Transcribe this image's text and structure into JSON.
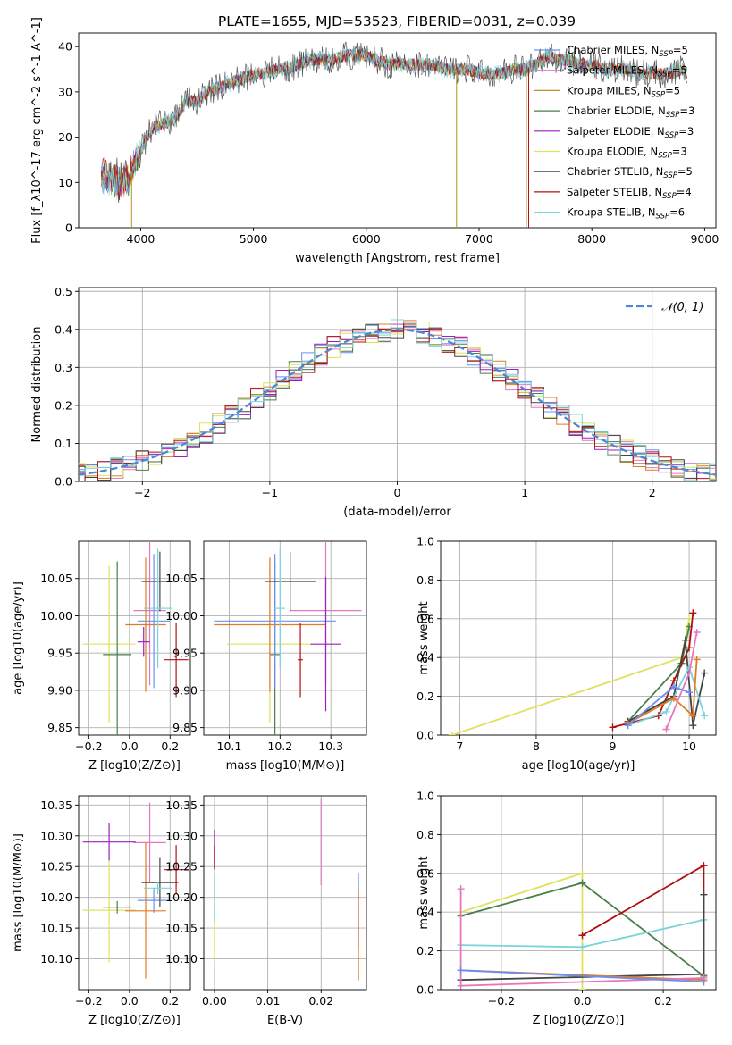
{
  "figure": {
    "title": "PLATE=1655, MJD=53523, FIBERID=0031, z=0.039"
  },
  "colors": {
    "chabrier_miles": "#6b8ff0",
    "salpeter_miles": "#e377c2",
    "kroupa_miles": "#bc8f1f",
    "chabrier_elodie": "#4a7f4a",
    "salpeter_elodie": "#9b1fc4",
    "kroupa_elodie": "#dde35a",
    "chabrier_stelib": "#444444",
    "salpeter_stelib": "#b01010",
    "kroupa_stelib": "#79d5db",
    "orange": "#e07b24",
    "normal_curve": "#4f86d4",
    "grid": "#b0b0b0"
  },
  "chart_data": [
    {
      "id": "spectrum",
      "type": "line",
      "xlabel": "wavelength [Angstrom, rest frame]",
      "ylabel": "Flux [f_λ10^-17 erg cm^-2 s^-1 A^-1]",
      "xlim": [
        3450,
        9100
      ],
      "ylim": [
        0,
        43
      ],
      "xticks": [
        4000,
        5000,
        6000,
        7000,
        8000,
        9000
      ],
      "yticks": [
        0,
        10,
        20,
        30,
        40
      ],
      "grid": false,
      "legend_position": "right",
      "continuum": {
        "x": [
          3650,
          3700,
          3800,
          3900,
          4000,
          4100,
          4200,
          4300,
          4400,
          4500,
          4600,
          4700,
          4800,
          4900,
          5000,
          5100,
          5200,
          5300,
          5400,
          5500,
          5600,
          5700,
          5800,
          5900,
          6000,
          6100,
          6200,
          6300,
          6400,
          6500,
          6600,
          6700,
          6800,
          6900,
          7000,
          7100,
          7200,
          7300,
          7400,
          7500,
          7600,
          7700,
          7800,
          7900,
          8000,
          8100,
          8200,
          8300,
          8400,
          8500,
          8600,
          8700,
          8800,
          8850
        ],
        "y": [
          12,
          11,
          10,
          11,
          17,
          22,
          23,
          24,
          28,
          28,
          30,
          31,
          32,
          33,
          34,
          34,
          35,
          35,
          36,
          37,
          37,
          37,
          38,
          38,
          38,
          37,
          36,
          36,
          36,
          36,
          36,
          35,
          35,
          35,
          34,
          34,
          34,
          35,
          35,
          36,
          38,
          37,
          37,
          36,
          36,
          35,
          35,
          35,
          34,
          34,
          34,
          34,
          35,
          34
        ]
      },
      "series": [
        {
          "name": "Chabrier MILES, N_SSP=5",
          "color_key": "chabrier_miles"
        },
        {
          "name": "Salpeter MILES, N_SSP=5",
          "color_key": "salpeter_miles"
        },
        {
          "name": "Kroupa MILES, N_SSP=5",
          "color_key": "kroupa_miles"
        },
        {
          "name": "Chabrier ELODIE, N_SSP=3",
          "color_key": "chabrier_elodie"
        },
        {
          "name": "Salpeter ELODIE, N_SSP=3",
          "color_key": "salpeter_elodie"
        },
        {
          "name": "Kroupa ELODIE, N_SSP=3",
          "color_key": "kroupa_elodie"
        },
        {
          "name": "Chabrier STELIB, N_SSP=5",
          "color_key": "chabrier_stelib"
        },
        {
          "name": "Salpeter STELIB, N_SSP=4",
          "color_key": "salpeter_stelib"
        },
        {
          "name": "Kroupa STELIB, N_SSP=6",
          "color_key": "kroupa_stelib"
        }
      ],
      "drop_lines": [
        {
          "x": 3920,
          "color_key": "kroupa_miles"
        },
        {
          "x": 6800,
          "color_key": "kroupa_miles"
        },
        {
          "x": 7420,
          "color_key": "orange"
        },
        {
          "x": 7440,
          "color_key": "salpeter_stelib"
        }
      ]
    },
    {
      "id": "residuals",
      "type": "line",
      "xlabel": "(data-model)/error",
      "ylabel": "Normed distribution",
      "xlim": [
        -2.5,
        2.5
      ],
      "ylim": [
        0,
        0.51
      ],
      "xticks": [
        -2,
        -1,
        0,
        1,
        2
      ],
      "xtick_labels": [
        "−2",
        "−1",
        "0",
        "1",
        "2"
      ],
      "yticks": [
        0.0,
        0.1,
        0.2,
        0.3,
        0.4,
        0.5
      ],
      "ytick_labels": [
        "0.0",
        "0.1",
        "0.2",
        "0.3",
        "0.4",
        "0.5"
      ],
      "grid": true,
      "legend_position": "top-right",
      "normal_label": "𝒩(0, 1)",
      "hist_bin_width": 0.1
    },
    {
      "id": "age_vs_Z",
      "type": "scatter",
      "xlabel": "Z [log10(Z/Z⊙)]",
      "ylabel": "age [log10(age/yr)]",
      "xlim": [
        -0.25,
        0.3
      ],
      "ylim": [
        9.84,
        10.1
      ],
      "xticks": [
        -0.2,
        0.0,
        0.2
      ],
      "xtick_labels": [
        "−0.2",
        "0.0",
        "0.2"
      ],
      "yticks": [
        9.85,
        9.9,
        9.95,
        10.0,
        10.05
      ],
      "ytick_labels": [
        "9.85",
        "9.90",
        "9.95",
        "10.00",
        "10.05"
      ],
      "grid": true,
      "points": [
        {
          "x": -0.1,
          "y": 9.962,
          "xerr": 0.13,
          "yerr": 0.105,
          "color_key": "kroupa_elodie"
        },
        {
          "x": -0.06,
          "y": 9.948,
          "xerr": 0.07,
          "yerr": 0.125,
          "color_key": "chabrier_elodie"
        },
        {
          "x": 0.1,
          "y": 10.007,
          "xerr": 0.08,
          "yerr": 0.1,
          "color_key": "salpeter_miles"
        },
        {
          "x": 0.12,
          "y": 9.993,
          "xerr": 0.08,
          "yerr": 0.09,
          "color_key": "chabrier_miles"
        },
        {
          "x": 0.08,
          "y": 9.988,
          "xerr": 0.1,
          "yerr": 0.09,
          "color_key": "orange"
        },
        {
          "x": 0.15,
          "y": 10.046,
          "xerr": 0.09,
          "yerr": 0.04,
          "color_key": "chabrier_stelib"
        },
        {
          "x": 0.23,
          "y": 9.941,
          "xerr": 0.06,
          "yerr": 0.05,
          "color_key": "salpeter_stelib"
        },
        {
          "x": 0.14,
          "y": 10.01,
          "xerr": 0.07,
          "yerr": 0.08,
          "color_key": "kroupa_stelib"
        },
        {
          "x": 0.07,
          "y": 9.965,
          "xerr": 0.03,
          "yerr": 0.02,
          "color_key": "salpeter_elodie"
        }
      ]
    },
    {
      "id": "age_vs_mass",
      "type": "scatter",
      "xlabel": "mass [log10(M/M⊙)]",
      "ylabel": "",
      "xlim": [
        10.05,
        10.37
      ],
      "ylim": [
        9.84,
        10.1
      ],
      "xticks": [
        10.1,
        10.2,
        10.3
      ],
      "xtick_labels": [
        "10.1",
        "10.2",
        "10.3"
      ],
      "yticks": [
        9.85,
        9.9,
        9.95,
        10.0,
        10.05
      ],
      "ytick_labels": [
        "9.85",
        "9.90",
        "9.95",
        "10.00",
        "10.05"
      ],
      "grid": true,
      "points": [
        {
          "x": 10.18,
          "y": 9.962,
          "xerr": 0.085,
          "yerr": 0.105,
          "color_key": "kroupa_elodie"
        },
        {
          "x": 10.19,
          "y": 9.948,
          "xerr": 0.01,
          "yerr": 0.125,
          "color_key": "chabrier_elodie"
        },
        {
          "x": 10.29,
          "y": 10.007,
          "xerr": 0.07,
          "yerr": 0.1,
          "color_key": "salpeter_miles"
        },
        {
          "x": 10.19,
          "y": 9.993,
          "xerr": 0.12,
          "yerr": 0.09,
          "color_key": "chabrier_miles"
        },
        {
          "x": 10.18,
          "y": 9.988,
          "xerr": 0.11,
          "yerr": 0.09,
          "color_key": "orange"
        },
        {
          "x": 10.22,
          "y": 10.046,
          "xerr": 0.05,
          "yerr": 0.04,
          "color_key": "chabrier_stelib"
        },
        {
          "x": 10.24,
          "y": 9.941,
          "xerr": 0.005,
          "yerr": 0.05,
          "color_key": "salpeter_stelib"
        },
        {
          "x": 10.2,
          "y": 10.01,
          "xerr": 0.01,
          "yerr": 0.08,
          "color_key": "kroupa_stelib"
        },
        {
          "x": 10.29,
          "y": 9.962,
          "xerr": 0.03,
          "yerr": 0.09,
          "color_key": "salpeter_elodie"
        }
      ]
    },
    {
      "id": "weight_vs_age",
      "type": "line",
      "xlabel": "age [log10(age/yr)]",
      "ylabel": "mass weight",
      "xlim": [
        6.75,
        10.35
      ],
      "ylim": [
        0,
        1.0
      ],
      "xticks": [
        7,
        8,
        9,
        10
      ],
      "yticks": [
        0.0,
        0.2,
        0.4,
        0.6,
        0.8,
        1.0
      ],
      "ytick_labels": [
        "0.0",
        "0.2",
        "0.4",
        "0.6",
        "0.8",
        "1.0"
      ],
      "grid": true,
      "series": [
        {
          "color_key": "kroupa_elodie",
          "x": [
            6.9,
            9.9,
            10.0
          ],
          "y": [
            0.0,
            0.4,
            0.6
          ]
        },
        {
          "color_key": "chabrier_elodie",
          "x": [
            9.2,
            9.9,
            10.0
          ],
          "y": [
            0.07,
            0.37,
            0.56
          ]
        },
        {
          "color_key": "salpeter_stelib",
          "x": [
            9.0,
            9.6,
            9.8,
            10.0,
            10.05
          ],
          "y": [
            0.04,
            0.1,
            0.28,
            0.45,
            0.63
          ]
        },
        {
          "color_key": "chabrier_stelib",
          "x": [
            9.2,
            9.8,
            9.95,
            10.05,
            10.2
          ],
          "y": [
            0.07,
            0.2,
            0.49,
            0.05,
            0.32
          ]
        },
        {
          "color_key": "kroupa_stelib",
          "x": [
            9.2,
            9.7,
            10.0,
            10.2
          ],
          "y": [
            0.05,
            0.12,
            0.35,
            0.1
          ]
        },
        {
          "color_key": "orange",
          "x": [
            9.2,
            9.8,
            10.05,
            10.1
          ],
          "y": [
            0.06,
            0.19,
            0.1,
            0.39
          ]
        },
        {
          "color_key": "salpeter_miles",
          "x": [
            9.7,
            10.0,
            10.1
          ],
          "y": [
            0.03,
            0.32,
            0.53
          ]
        },
        {
          "color_key": "chabrier_miles",
          "x": [
            9.2,
            9.8,
            10.0
          ],
          "y": [
            0.05,
            0.25,
            0.22
          ]
        }
      ]
    },
    {
      "id": "mass_vs_Z",
      "type": "scatter",
      "xlabel": "Z [log10(Z/Z⊙)]",
      "ylabel": "mass [log10(M/M⊙)]",
      "xlim": [
        -0.25,
        0.3
      ],
      "ylim": [
        10.05,
        10.365
      ],
      "xticks": [
        -0.2,
        0.0,
        0.2
      ],
      "xtick_labels": [
        "−0.2",
        "0.0",
        "0.2"
      ],
      "yticks": [
        10.1,
        10.15,
        10.2,
        10.25,
        10.3,
        10.35
      ],
      "ytick_labels": [
        "10.10",
        "10.15",
        "10.20",
        "10.25",
        "10.30",
        "10.35"
      ],
      "grid": true,
      "points": [
        {
          "x": -0.1,
          "y": 10.179,
          "xerr": 0.13,
          "yerr": 0.085,
          "color_key": "kroupa_elodie"
        },
        {
          "x": -0.06,
          "y": 10.184,
          "xerr": 0.07,
          "yerr": 0.01,
          "color_key": "chabrier_elodie"
        },
        {
          "x": 0.1,
          "y": 10.289,
          "xerr": 0.08,
          "yerr": 0.065,
          "color_key": "salpeter_miles"
        },
        {
          "x": 0.12,
          "y": 10.195,
          "xerr": 0.08,
          "yerr": 0.02,
          "color_key": "chabrier_miles"
        },
        {
          "x": 0.08,
          "y": 10.178,
          "xerr": 0.1,
          "yerr": 0.11,
          "color_key": "orange"
        },
        {
          "x": 0.15,
          "y": 10.224,
          "xerr": 0.09,
          "yerr": 0.04,
          "color_key": "chabrier_stelib"
        },
        {
          "x": 0.23,
          "y": 10.245,
          "xerr": 0.06,
          "yerr": 0.04,
          "color_key": "salpeter_stelib"
        },
        {
          "x": 0.14,
          "y": 10.215,
          "xerr": 0.07,
          "yerr": 0.01,
          "color_key": "kroupa_stelib"
        },
        {
          "x": -0.1,
          "y": 10.29,
          "xerr": 0.13,
          "yerr": 0.03,
          "color_key": "salpeter_elodie"
        }
      ]
    },
    {
      "id": "mass_vs_ebv",
      "type": "scatter",
      "xlabel": "E(B-V)",
      "ylabel": "",
      "xlim": [
        -0.002,
        0.0285
      ],
      "ylim": [
        10.05,
        10.365
      ],
      "xticks": [
        0.0,
        0.01,
        0.02
      ],
      "xtick_labels": [
        "0.00",
        "0.01",
        "0.02"
      ],
      "yticks": [
        10.1,
        10.15,
        10.2,
        10.25,
        10.3,
        10.35
      ],
      "ytick_labels": [
        "10.10",
        "10.15",
        "10.20",
        "10.25",
        "10.30",
        "10.35"
      ],
      "grid": true,
      "points": [
        {
          "x": 0.0,
          "y": 10.17,
          "xerr": 0,
          "yerr": 0.075,
          "color_key": "kroupa_elodie"
        },
        {
          "x": 0.0,
          "y": 10.28,
          "xerr": 0,
          "yerr": 0.03,
          "color_key": "salpeter_elodie"
        },
        {
          "x": 0.0,
          "y": 10.265,
          "xerr": 0,
          "yerr": 0.02,
          "color_key": "salpeter_stelib"
        },
        {
          "x": 0.0,
          "y": 10.2,
          "xerr": 0,
          "yerr": 0.04,
          "color_key": "kroupa_stelib"
        },
        {
          "x": 0.02,
          "y": 10.29,
          "xerr": 0,
          "yerr": 0.07,
          "color_key": "salpeter_miles"
        },
        {
          "x": 0.027,
          "y": 10.18,
          "xerr": 0,
          "yerr": 0.06,
          "color_key": "chabrier_miles"
        },
        {
          "x": 0.027,
          "y": 10.14,
          "xerr": 0,
          "yerr": 0.075,
          "color_key": "orange"
        }
      ]
    },
    {
      "id": "weight_vs_Z",
      "type": "line",
      "xlabel": "Z [log10(Z/Z⊙)]",
      "ylabel": "mass weight",
      "xlim": [
        -0.35,
        0.33
      ],
      "ylim": [
        0,
        1.0
      ],
      "xticks": [
        -0.2,
        0.0,
        0.2
      ],
      "xtick_labels": [
        "−0.2",
        "0.0",
        "0.2"
      ],
      "yticks": [
        0.0,
        0.2,
        0.4,
        0.6,
        0.8,
        1.0
      ],
      "ytick_labels": [
        "0.0",
        "0.2",
        "0.4",
        "0.6",
        "0.8",
        "1.0"
      ],
      "grid": true,
      "series": [
        {
          "color_key": "kroupa_elodie",
          "x": [
            -0.3,
            0.0,
            0.0
          ],
          "y": [
            0.4,
            0.6,
            0.0
          ]
        },
        {
          "color_key": "chabrier_elodie",
          "x": [
            -0.3,
            0.0,
            0.3
          ],
          "y": [
            0.38,
            0.55,
            0.07
          ]
        },
        {
          "color_key": "salpeter_stelib",
          "x": [
            0.0,
            0.3,
            0.3
          ],
          "y": [
            0.28,
            0.64,
            0.04
          ]
        },
        {
          "color_key": "kroupa_stelib",
          "x": [
            -0.3,
            0.0,
            0.3
          ],
          "y": [
            0.23,
            0.22,
            0.36
          ]
        },
        {
          "color_key": "chabrier_stelib",
          "x": [
            -0.3,
            0.3,
            0.3
          ],
          "y": [
            0.05,
            0.08,
            0.49
          ]
        },
        {
          "color_key": "orange",
          "x": [
            -0.3,
            0.3
          ],
          "y": [
            0.1,
            0.05
          ]
        },
        {
          "color_key": "salpeter_miles",
          "x": [
            -0.3,
            -0.3,
            0.3
          ],
          "y": [
            0.52,
            0.02,
            0.06
          ]
        },
        {
          "color_key": "chabrier_miles",
          "x": [
            -0.3,
            0.3
          ],
          "y": [
            0.1,
            0.04
          ]
        }
      ]
    }
  ]
}
